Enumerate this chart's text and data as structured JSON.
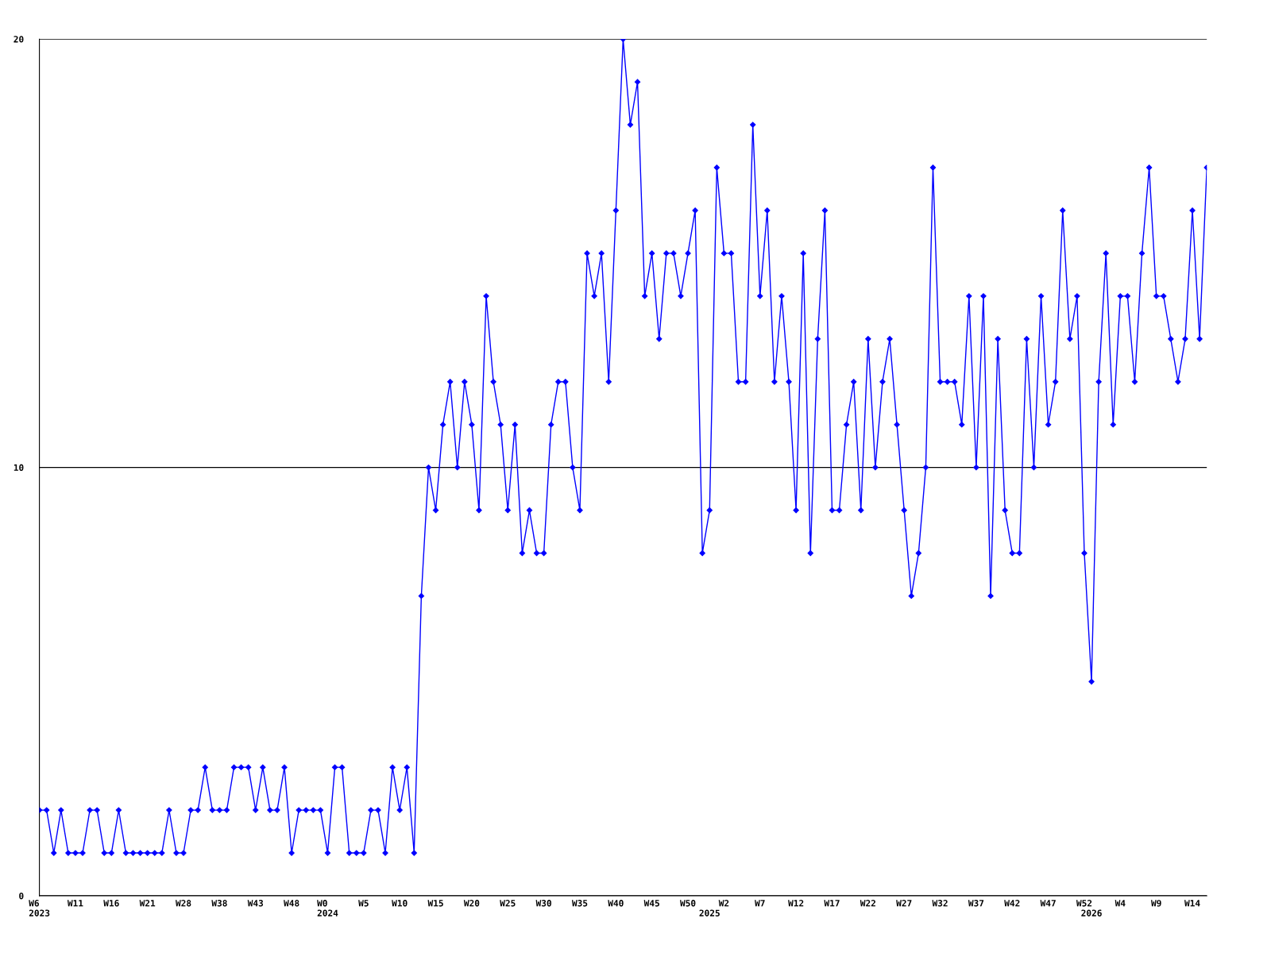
{
  "chart_data": {
    "type": "line",
    "categories": [
      "W6\n2023",
      null,
      null,
      null,
      null,
      "W11",
      null,
      null,
      null,
      null,
      "W16",
      null,
      null,
      null,
      null,
      "W21",
      null,
      null,
      null,
      null,
      "W28",
      null,
      null,
      null,
      null,
      "W38",
      null,
      null,
      null,
      null,
      "W43",
      null,
      null,
      null,
      null,
      "W48",
      null,
      null,
      null,
      null,
      "W0\n2024",
      null,
      null,
      null,
      null,
      "W5",
      null,
      null,
      null,
      null,
      "W10",
      null,
      null,
      null,
      null,
      "W15",
      null,
      null,
      null,
      null,
      "W20",
      null,
      null,
      null,
      null,
      "W25",
      null,
      null,
      null,
      null,
      "W30",
      null,
      null,
      null,
      null,
      "W35",
      null,
      null,
      null,
      null,
      "W40",
      null,
      null,
      null,
      null,
      "W45",
      null,
      null,
      null,
      null,
      "W50",
      null,
      null,
      "\n2025",
      null,
      "W2",
      null,
      null,
      null,
      null,
      "W7",
      null,
      null,
      null,
      null,
      "W12",
      null,
      null,
      null,
      null,
      "W17",
      null,
      null,
      null,
      null,
      "W22",
      null,
      null,
      null,
      null,
      "W27",
      null,
      null,
      null,
      null,
      "W32",
      null,
      null,
      null,
      null,
      "W37",
      null,
      null,
      null,
      null,
      "W42",
      null,
      null,
      null,
      null,
      "W47",
      null,
      null,
      null,
      null,
      "W52",
      "\n2026",
      null,
      null,
      null,
      "W4",
      null,
      null,
      null,
      null,
      "W9",
      null,
      null,
      null,
      null,
      "W14",
      null,
      null
    ],
    "values": [
      2,
      2,
      1,
      2,
      1,
      1,
      1,
      2,
      2,
      1,
      1,
      2,
      1,
      1,
      1,
      1,
      1,
      1,
      2,
      1,
      1,
      2,
      2,
      3,
      2,
      2,
      2,
      3,
      3,
      3,
      2,
      3,
      2,
      2,
      3,
      1,
      2,
      2,
      2,
      2,
      1,
      3,
      3,
      1,
      1,
      1,
      2,
      2,
      1,
      3,
      2,
      3,
      1,
      7,
      10,
      9,
      11,
      12,
      10,
      12,
      11,
      9,
      14,
      12,
      11,
      9,
      11,
      8,
      9,
      8,
      8,
      11,
      12,
      12,
      10,
      9,
      15,
      14,
      15,
      12,
      16,
      20,
      18,
      19,
      14,
      15,
      13,
      15,
      15,
      14,
      15,
      16,
      8,
      9,
      17,
      15,
      15,
      12,
      12,
      18,
      14,
      16,
      12,
      14,
      12,
      9,
      15,
      8,
      13,
      16,
      9,
      9,
      11,
      12,
      9,
      13,
      10,
      12,
      13,
      11,
      9,
      7,
      8,
      10,
      17,
      12,
      12,
      12,
      11,
      14,
      10,
      14,
      7,
      13,
      9,
      8,
      8,
      13,
      10,
      14,
      11,
      12,
      16,
      13,
      14,
      8,
      5,
      12,
      15,
      11,
      14,
      14,
      12,
      15,
      17,
      14,
      14,
      13,
      12,
      13,
      16,
      13,
      17
    ],
    "color": "#0000ff",
    "ylim": [
      0,
      20
    ],
    "yticks": [
      0,
      10,
      20
    ],
    "grid": "y",
    "marker": "diamond",
    "line_style": "solid"
  }
}
